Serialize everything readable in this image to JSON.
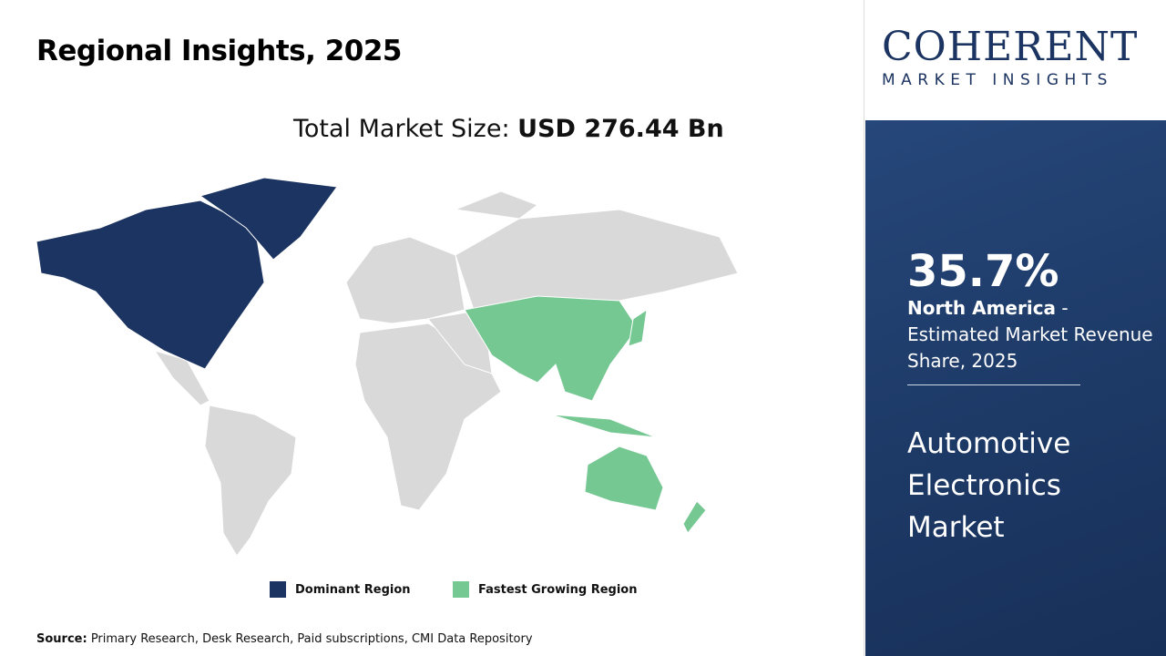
{
  "header": {
    "title": "Regional Insights, 2025"
  },
  "total": {
    "label": "Total Market Size: ",
    "value": "USD 276.44 Bn"
  },
  "legend": [
    {
      "label": "Dominant Region",
      "color": "#1c3461"
    },
    {
      "label": "Fastest Growing Region",
      "color": "#76c893"
    }
  ],
  "map": {
    "dominant": "North America",
    "fastest": "Asia Pacific",
    "other_color": "#d9d9d9"
  },
  "source": {
    "label": "Source:",
    "text": " Primary Research, Desk Research, Paid subscriptions, CMI Data Repository"
  },
  "logo": {
    "big": "COHERENT",
    "small": "MARKET INSIGHTS"
  },
  "panel": {
    "percent": "35.7%",
    "region": "North America",
    "desc": " - Estimated Market Revenue Share, 2025",
    "market_lines": [
      "Automotive",
      "Electronics",
      "Market"
    ]
  }
}
